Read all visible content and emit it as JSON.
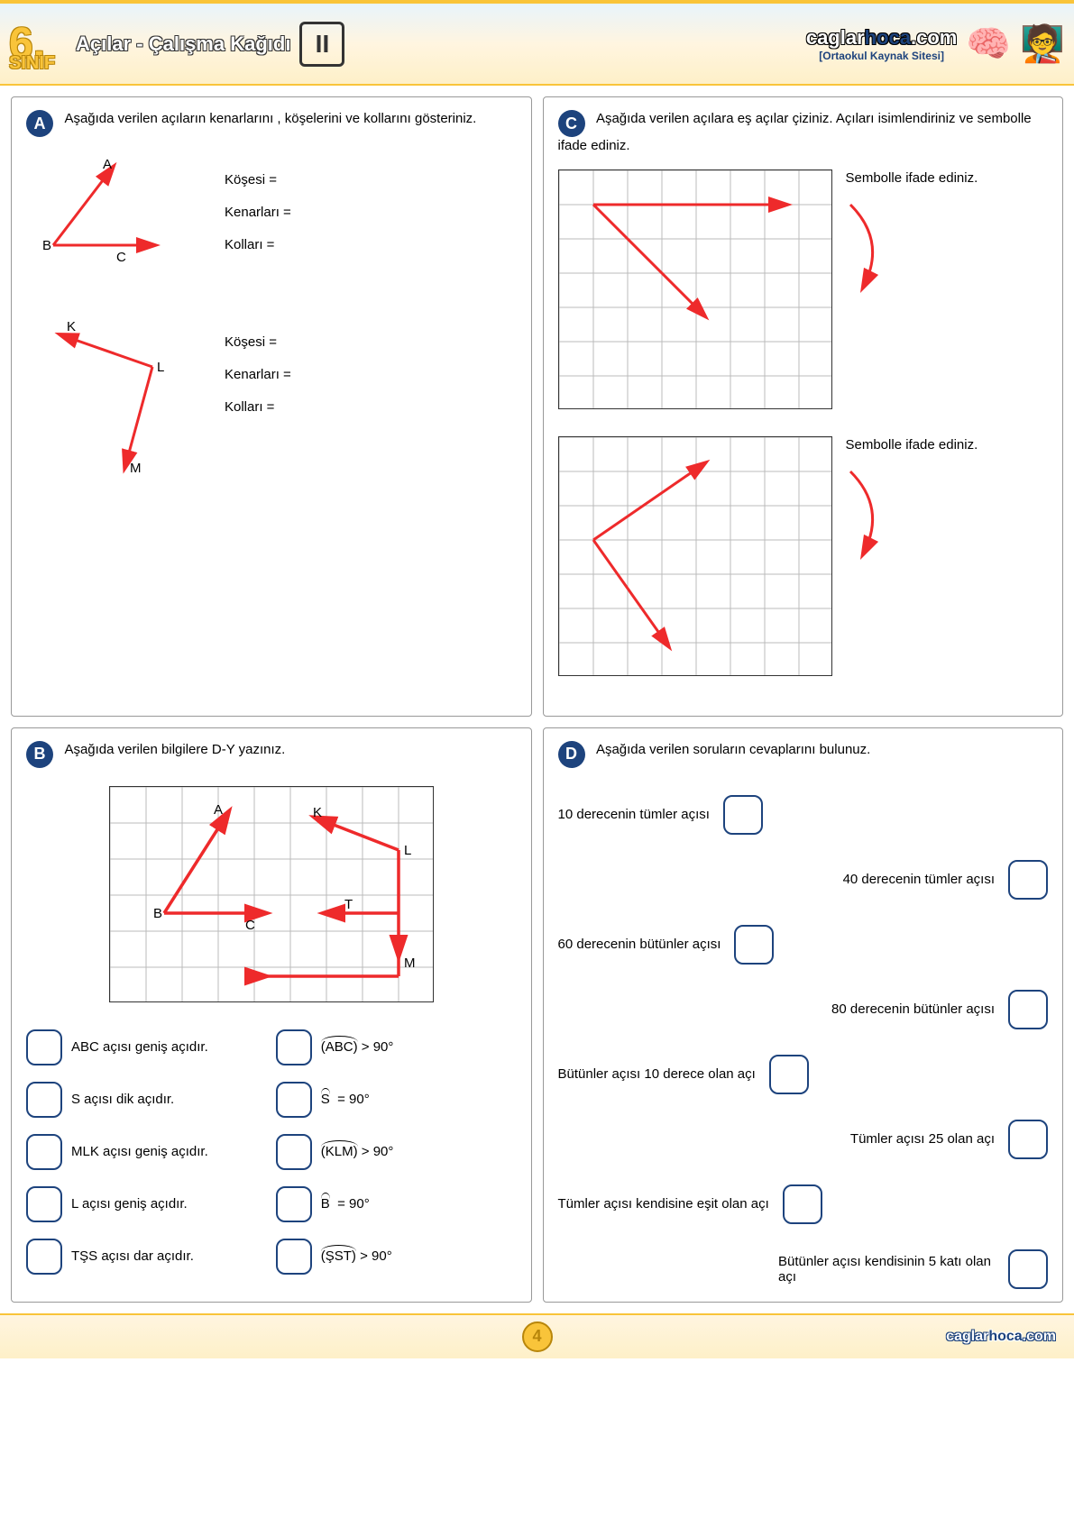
{
  "header": {
    "grade_num": "6.",
    "grade_label": "SINIF",
    "title": "Açılar - Çalışma Kağıdı",
    "page_roman": "II",
    "site_name_prefix": "caglar",
    "site_name_mid": "hoca",
    "site_name_suffix": ".com",
    "site_subtitle": "[Ortaokul Kaynak Sitesi]"
  },
  "sectionA": {
    "badge": "A",
    "instruction": "Aşağıda verilen açıların kenarlarını , köşelerini ve kollarını gösteriniz.",
    "fig1": {
      "points": {
        "A": "A",
        "B": "B",
        "C": "C"
      },
      "labels": {
        "vertex": "Köşesi =",
        "sides": "Kenarları =",
        "arms": "Kolları ="
      }
    },
    "fig2": {
      "points": {
        "K": "K",
        "L": "L",
        "M": "M"
      },
      "labels": {
        "vertex": "Köşesi =",
        "sides": "Kenarları =",
        "arms": "Kolları ="
      }
    },
    "stroke": "#ee2a2b",
    "stroke_width": 3
  },
  "sectionB": {
    "badge": "B",
    "instruction": "Aşağıda verilen bilgilere D-Y yazınız.",
    "grid": {
      "cols": 9,
      "rows": 6,
      "cell": 40,
      "stroke": "#999"
    },
    "points": {
      "A": "A",
      "B": "B",
      "C": "C",
      "K": "K",
      "L": "L",
      "T": "T",
      "M": "M"
    },
    "items_left": [
      "ABC açısı geniş açıdır.",
      "S açısı dik açıdır.",
      "MLK açısı geniş açıdır.",
      "L açısı geniş açıdır.",
      "TŞS açısı dar açıdır."
    ],
    "items_right": [
      {
        "hat": "(ABC)",
        "rest": "> 90"
      },
      {
        "hat": "S",
        "rest": "= 90"
      },
      {
        "hat": "(KLM)",
        "rest": "> 90"
      },
      {
        "hat": "B",
        "rest": "= 90"
      },
      {
        "hat": "(ŞST)",
        "rest": "> 90"
      }
    ],
    "stroke": "#ee2a2b"
  },
  "sectionC": {
    "badge": "C",
    "instruction": "Aşağıda verilen açılara eş açılar çiziniz. Açıları isimlendiriniz ve sembolle ifade ediniz.",
    "grid": {
      "cols": 8,
      "rows": 7,
      "cell": 38,
      "stroke": "#999"
    },
    "label": "Sembolle ifade ediniz.",
    "stroke": "#ee2a2b"
  },
  "sectionD": {
    "badge": "D",
    "instruction": "Aşağıda verilen soruların cevaplarını bulunuz.",
    "items": [
      {
        "text": "10 derecenin tümler açısı",
        "align": "left"
      },
      {
        "text": "40 derecenin tümler açısı",
        "align": "right"
      },
      {
        "text": "60 derecenin bütünler açısı",
        "align": "left"
      },
      {
        "text": "80 derecenin bütünler açısı",
        "align": "right"
      },
      {
        "text": "Bütünler açısı 10 derece olan açı",
        "align": "left"
      },
      {
        "text": "Tümler açısı 25 olan açı",
        "align": "right"
      },
      {
        "text": "Tümler açısı kendisine eşit olan açı",
        "align": "left"
      },
      {
        "text": "Bütünler açısı kendisinin 5 katı olan açı",
        "align": "right"
      }
    ]
  },
  "footer": {
    "page": "4",
    "site_prefix": "caglar",
    "site_mid": "hoca",
    "site_suffix": ".com"
  },
  "colors": {
    "brand": "#1d437d",
    "accent": "#f9c43a",
    "angle": "#ee2a2b"
  }
}
